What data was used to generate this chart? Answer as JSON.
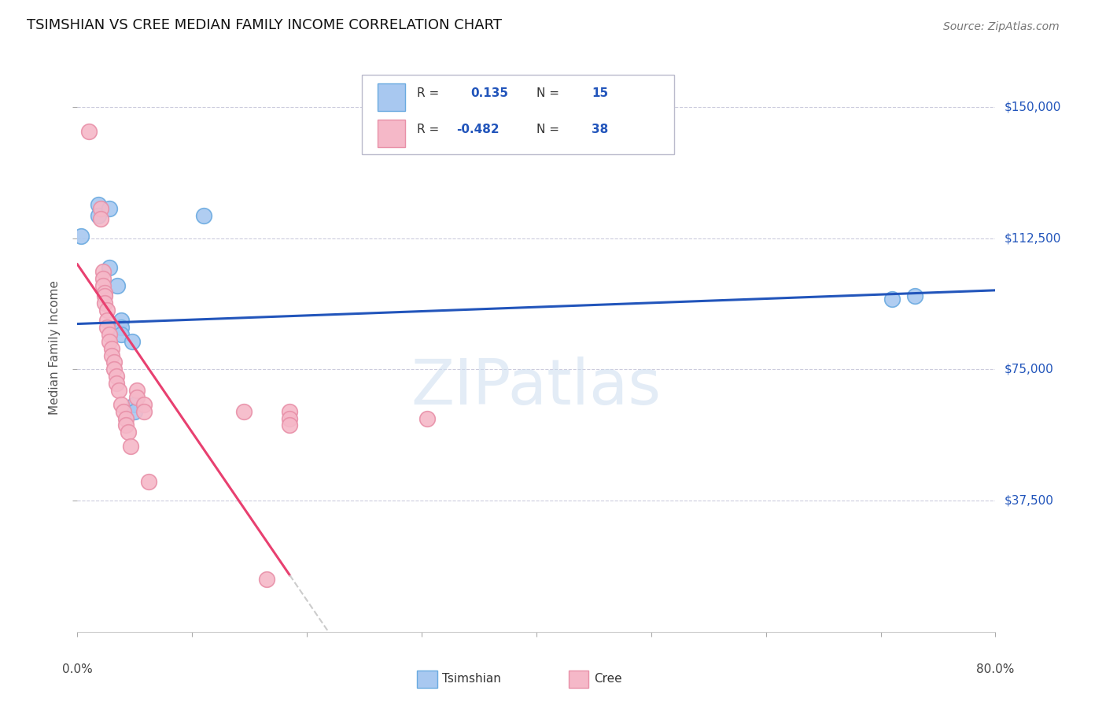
{
  "title": "TSIMSHIAN VS CREE MEDIAN FAMILY INCOME CORRELATION CHART",
  "source": "Source: ZipAtlas.com",
  "ylabel": "Median Family Income",
  "ytick_labels": [
    "$37,500",
    "$75,000",
    "$112,500",
    "$150,000"
  ],
  "ytick_values": [
    37500,
    75000,
    112500,
    150000
  ],
  "ymin": 0,
  "ymax": 162500,
  "xmin": 0.0,
  "xmax": 0.8,
  "tsimshian_color": "#a8c8f0",
  "tsimshian_edge": "#6aaae0",
  "cree_color": "#f5b8c8",
  "cree_edge": "#e890a8",
  "tsimshian_line_color": "#2255bb",
  "cree_line_color": "#e84070",
  "cree_line_dashed_color": "#cccccc",
  "background_color": "#ffffff",
  "grid_color": "#ccccdd",
  "tsimshian_points": [
    [
      0.003,
      113000
    ],
    [
      0.018,
      122000
    ],
    [
      0.018,
      119000
    ],
    [
      0.028,
      121000
    ],
    [
      0.028,
      104000
    ],
    [
      0.035,
      99000
    ],
    [
      0.038,
      89000
    ],
    [
      0.038,
      87000
    ],
    [
      0.038,
      85000
    ],
    [
      0.048,
      83000
    ],
    [
      0.05,
      65000
    ],
    [
      0.11,
      119000
    ],
    [
      0.71,
      95000
    ],
    [
      0.73,
      96000
    ],
    [
      0.05,
      63000
    ]
  ],
  "cree_points": [
    [
      0.01,
      143000
    ],
    [
      0.02,
      121000
    ],
    [
      0.02,
      118000
    ],
    [
      0.022,
      103000
    ],
    [
      0.022,
      101000
    ],
    [
      0.022,
      99000
    ],
    [
      0.024,
      97000
    ],
    [
      0.024,
      96000
    ],
    [
      0.024,
      94000
    ],
    [
      0.026,
      92000
    ],
    [
      0.026,
      89000
    ],
    [
      0.026,
      87000
    ],
    [
      0.028,
      85000
    ],
    [
      0.028,
      83000
    ],
    [
      0.03,
      81000
    ],
    [
      0.03,
      79000
    ],
    [
      0.032,
      77000
    ],
    [
      0.032,
      75000
    ],
    [
      0.034,
      73000
    ],
    [
      0.034,
      71000
    ],
    [
      0.036,
      69000
    ],
    [
      0.038,
      65000
    ],
    [
      0.04,
      63000
    ],
    [
      0.042,
      61000
    ],
    [
      0.042,
      59000
    ],
    [
      0.044,
      57000
    ],
    [
      0.046,
      53000
    ],
    [
      0.052,
      69000
    ],
    [
      0.052,
      67000
    ],
    [
      0.058,
      65000
    ],
    [
      0.058,
      63000
    ],
    [
      0.062,
      43000
    ],
    [
      0.145,
      63000
    ],
    [
      0.165,
      15000
    ],
    [
      0.305,
      61000
    ],
    [
      0.185,
      63000
    ],
    [
      0.185,
      61000
    ],
    [
      0.185,
      59000
    ]
  ],
  "cree_line_x_solid_end": 0.185,
  "cree_line_x_dash_end": 0.42,
  "tsimshian_line_intercept": 88000,
  "tsimshian_line_slope": 12000,
  "cree_line_intercept": 105000,
  "cree_line_slope": -480000
}
